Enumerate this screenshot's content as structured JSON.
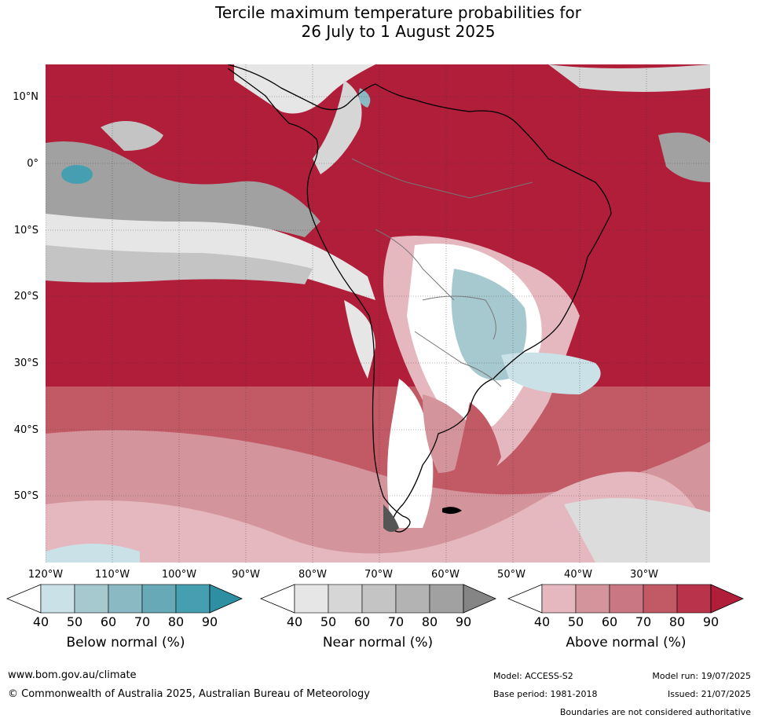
{
  "title": {
    "line1": "Tercile maximum temperature probabilities for",
    "line2": "26 July to 1 August 2025"
  },
  "map": {
    "lat_labels": [
      "10°N",
      "0°",
      "10°S",
      "20°S",
      "30°S",
      "40°S",
      "50°S"
    ],
    "lon_labels": [
      "120°W",
      "110°W",
      "100°W",
      "90°W",
      "80°W",
      "70°W",
      "60°W",
      "50°W",
      "40°W",
      "30°W"
    ],
    "extent": {
      "lon": [
        -120,
        -20
      ],
      "lat": [
        -60,
        15
      ]
    },
    "grid": true
  },
  "legends": [
    {
      "name": "Below normal (%)",
      "ticks": [
        "40",
        "50",
        "60",
        "70",
        "80",
        "90"
      ],
      "colors": [
        "#ffffff",
        "#c9e1e7",
        "#a6c8cf",
        "#8ab9c3",
        "#68a9b8",
        "#459fb0",
        "#2e8fa3"
      ]
    },
    {
      "name": "Near normal (%)",
      "ticks": [
        "40",
        "50",
        "60",
        "70",
        "80",
        "90"
      ],
      "colors": [
        "#ffffff",
        "#e6e6e6",
        "#d6d6d6",
        "#c4c4c4",
        "#b3b3b3",
        "#a1a1a1",
        "#858585"
      ]
    },
    {
      "name": "Above normal (%)",
      "ticks": [
        "40",
        "50",
        "60",
        "70",
        "80",
        "90"
      ],
      "colors": [
        "#ffffff",
        "#e4b8be",
        "#d4949c",
        "#c97883",
        "#c25a66",
        "#b9344a",
        "#b01e3a"
      ]
    }
  ],
  "footer": {
    "url": "www.bom.gov.au/climate",
    "copyright": "© Commonwealth of Australia 2025, Australian Bureau of Meteorology",
    "model": "Model: ACCESS-S2",
    "base_period": "Base period: 1981-2018",
    "model_run": "Model run: 19/07/2025",
    "issued": "Issued: 21/07/2025",
    "disclaimer": "Boundaries are not considered authoritative"
  }
}
